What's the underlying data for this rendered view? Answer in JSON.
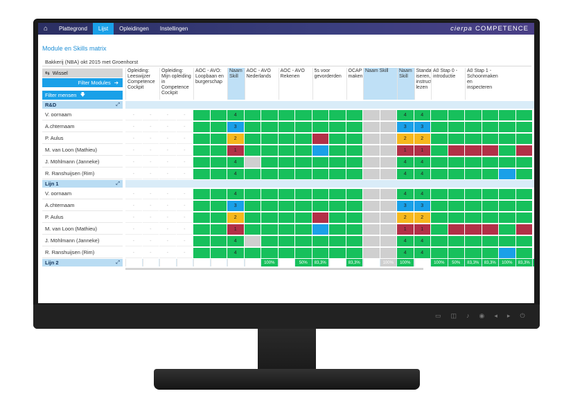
{
  "nav": {
    "tabs": [
      {
        "label": "Plattegrond",
        "active": false
      },
      {
        "label": "Lijst",
        "active": true
      },
      {
        "label": "Opleidingen",
        "active": false
      },
      {
        "label": "Instellingen",
        "active": false
      }
    ],
    "brand_logo": "cierpa",
    "brand_text": "COMPETENCE",
    "home_icon": "home-icon"
  },
  "page_title": "Module en Skills matrix",
  "group_title": "Bakkerij (NBA) okt 2015 met Groenhorst",
  "controls": {
    "wissel": "Wissel",
    "filter_modules": "Filter Modules",
    "filter_mensen": "Filter mensen"
  },
  "columns": [
    "Opleiding: Leeswijzer Competence Cockpit",
    "Opleiding: Mijn opleiding in Competence Cockpit",
    "AOC - AVO: Loopbaan en burgerschap",
    "Naam Skill",
    "AOC - AVO Nederlands",
    "AOC - AVO Rekenen",
    "5s voor gevorderden",
    "OCAP maken",
    "Naam Skill",
    "Naam Skill",
    "Standaard-iseren, instructies lezen",
    "A0 Stap 0 - introductie",
    "A0 Stap 1 - Schoonmaken en inspecteren"
  ],
  "people": [
    "V. oornaam",
    "A.chternaam",
    "P. Aulus",
    "M. van Loon (Mathieu)",
    "J. Möhlmann (Janneke)",
    "R. Ranshuijsen (Rim)"
  ],
  "sections": [
    {
      "name": "R&D"
    },
    {
      "name": "Lijn 1"
    },
    {
      "name": "Lijn 2"
    }
  ],
  "skill_levels": [
    [
      "4",
      "3",
      "2",
      "1",
      "4",
      "4"
    ],
    [
      "4",
      "3",
      "2",
      "1",
      "4",
      "4"
    ],
    [
      "4",
      "3",
      "2",
      "1",
      "4",
      "4"
    ]
  ],
  "totals": [
    {
      "col": 8,
      "text": "100%"
    },
    {
      "col": 10,
      "text": "50%"
    },
    {
      "col": 11,
      "text": "83,3%"
    },
    {
      "col": 13,
      "text": "83,3%"
    },
    {
      "col": 15,
      "text": "100%"
    },
    {
      "col": 16,
      "text": "100%"
    },
    {
      "col": 18,
      "text": "100%"
    },
    {
      "col": 19,
      "text": "50%"
    },
    {
      "col": 20,
      "text": "83,3%"
    },
    {
      "col": 21,
      "text": "83,3%"
    },
    {
      "col": 22,
      "text": "100%"
    },
    {
      "col": 23,
      "text": "83,3%"
    },
    {
      "col": 24,
      "text": "100%"
    },
    {
      "col": 25,
      "text": "83,3%"
    },
    {
      "col": 26,
      "text": "100%"
    }
  ],
  "colors": {
    "green": "#17c05c",
    "blue": "#1aa0e8",
    "yellow": "#f6b81d",
    "red": "#b23047",
    "grey": "#cfcfcf",
    "accent": "#1aa0e8",
    "skill_col": "#bfe0f6"
  },
  "monitor_buttons": [
    "▭",
    "◫",
    "♪",
    "◉",
    "◂",
    "▸",
    "⏻"
  ]
}
